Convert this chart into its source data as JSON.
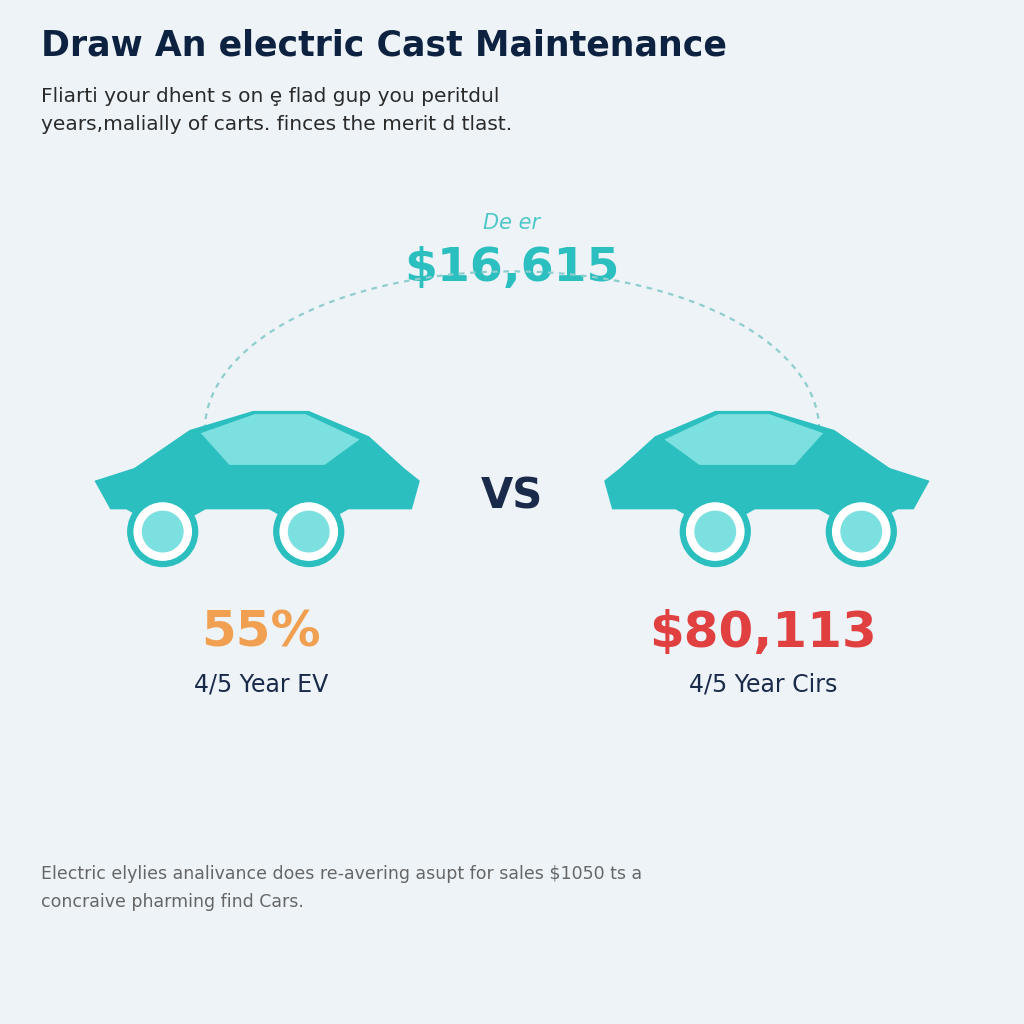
{
  "title": "Draw An electric Cast Maintenance",
  "subtitle": "Fliarti your dhent s on ȩ flad gup you peritdul\nyears,malially of carts. finces the merit d tlast.",
  "center_label": "De er",
  "center_value": "$16,615",
  "left_stat": "55%",
  "left_label": "4/5 Year EV",
  "right_stat": "$80,113",
  "right_label": "4/5 Year Cirs",
  "vs_text": "VS",
  "footer": "Electric elylies analivance does re-avering asupt for sales $1050 ts a\nconcraive pharming find Cars.",
  "bg_color": "#eef3f8",
  "title_color": "#0d2240",
  "subtitle_color": "#2a2a2a",
  "center_label_color": "#4ec8c8",
  "center_value_color": "#2bbfbf",
  "left_stat_color": "#f0a050",
  "right_stat_color": "#e04040",
  "label_color": "#1a2a4a",
  "vs_color": "#1a2a4a",
  "car_body_color": "#2bbfbf",
  "car_window_color": "#7de0e0",
  "car_wheel_outer": "#2bbfbf",
  "car_wheel_ring": "#ffffff",
  "car_wheel_inner": "#7de0e0",
  "arc_color": "#8ecece",
  "arrow_color": "#8ecece",
  "footer_color": "#666666"
}
